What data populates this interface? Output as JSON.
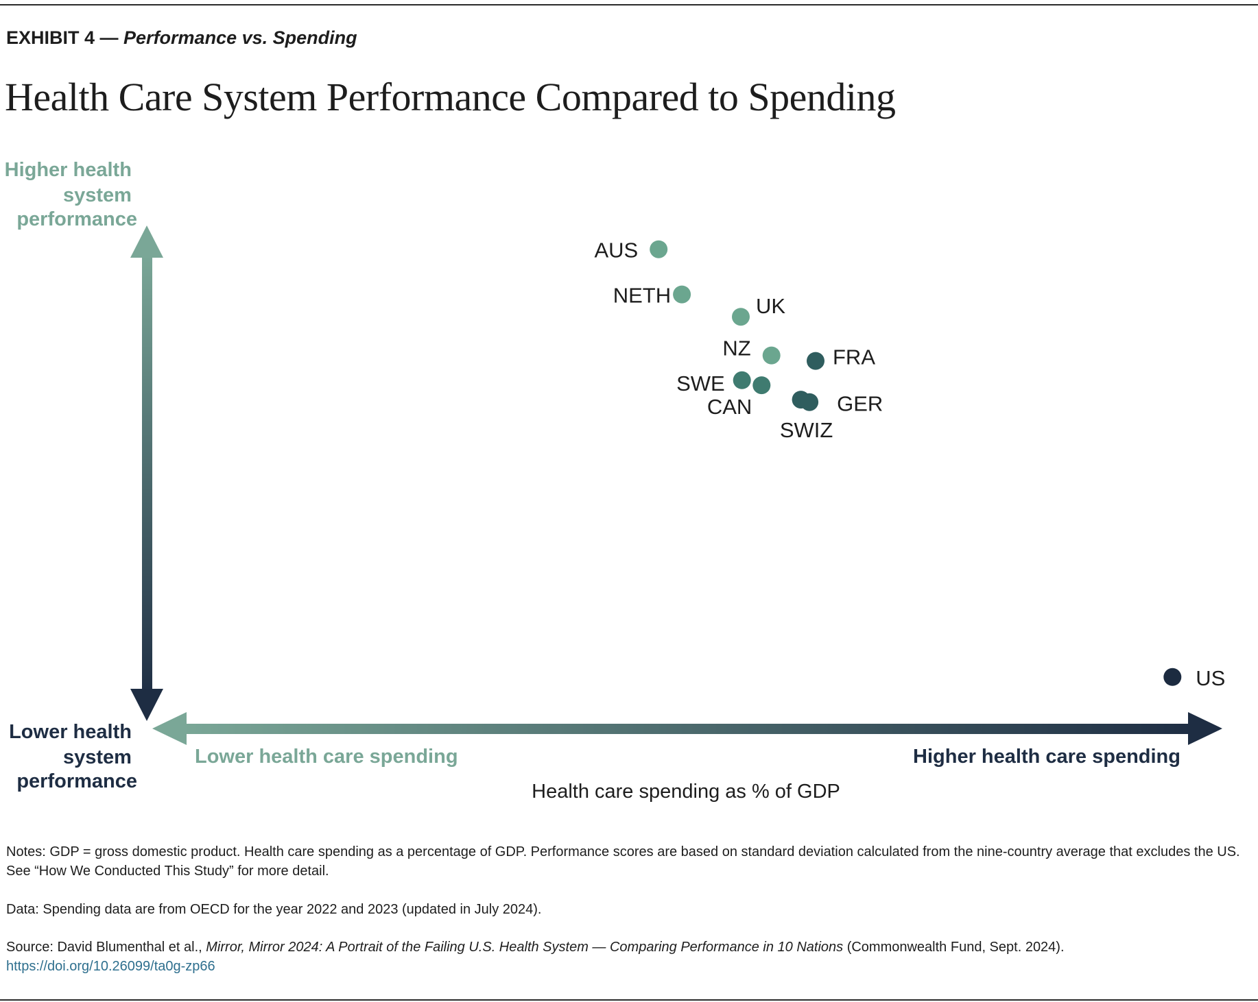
{
  "header": {
    "exhibit_label": "EXHIBIT 4 — ",
    "exhibit_subtitle": "Performance vs. Spending",
    "title": "Health Care System Performance Compared to Spending"
  },
  "colors": {
    "high_performance_teal": "#7aa797",
    "low_dark_navy": "#1e2d43",
    "point_light": "#6ba68f",
    "point_mid": "#3f7b70",
    "point_dark": "#2f5d5e",
    "point_us": "#1c2b40"
  },
  "chart_data": {
    "type": "scatter",
    "title": "Health Care System Performance Compared to Spending",
    "xlabel": "Health care spending as % of GDP",
    "ylabel": "Health system performance",
    "x_axis_ends": {
      "low": "Lower health care spending",
      "high": "Higher health care spending"
    },
    "y_axis_ends": {
      "high": [
        "Higher health",
        "system",
        "performance"
      ],
      "low": [
        "Lower health",
        "system",
        "performance"
      ]
    },
    "units_note": "Relative positions (x = spending index, y = performance index, 0–100); axes are unlabeled in the original",
    "xlim": [
      0,
      100
    ],
    "ylim": [
      0,
      100
    ],
    "grid": false,
    "points": [
      {
        "label": "AUS",
        "x": 53.7,
        "y": 91.2,
        "color": "#6ba68f"
      },
      {
        "label": "NETH",
        "x": 55.6,
        "y": 82.1,
        "color": "#6ba68f"
      },
      {
        "label": "UK",
        "x": 60.4,
        "y": 77.6,
        "color": "#6ba68f"
      },
      {
        "label": "NZ",
        "x": 62.9,
        "y": 69.8,
        "color": "#6ba68f"
      },
      {
        "label": "FRA",
        "x": 66.5,
        "y": 68.7,
        "color": "#2f5d5e"
      },
      {
        "label": "SWE",
        "x": 60.5,
        "y": 64.8,
        "color": "#3f7b70"
      },
      {
        "label": "CAN",
        "x": 62.1,
        "y": 63.8,
        "color": "#3f7b70"
      },
      {
        "label": "SWIZ",
        "x": 65.3,
        "y": 60.9,
        "color": "#2f5d5e"
      },
      {
        "label": "GER",
        "x": 66.0,
        "y": 60.4,
        "color": "#2f5d5e"
      },
      {
        "label": "US",
        "x": 95.6,
        "y": 5.0,
        "color": "#1c2b40"
      }
    ]
  },
  "footer": {
    "notes": "Notes: GDP = gross domestic product. Health care spending as a percentage of GDP. Performance scores are based on standard deviation calculated from the nine-country average that excludes the US. See “How We Conducted This Study” for more detail.",
    "data": "Data: Spending data are from OECD for the year 2022 and 2023 (updated in July 2024).",
    "source_prefix": "Source: David Blumenthal et al., ",
    "source_title": "Mirror, Mirror 2024: A Portrait of the Failing U.S. Health System — Comparing Performance in 10 Nations",
    "source_suffix": " (Commonwealth Fund, Sept. 2024).",
    "doi": "https://doi.org/10.26099/ta0g-zp66"
  }
}
